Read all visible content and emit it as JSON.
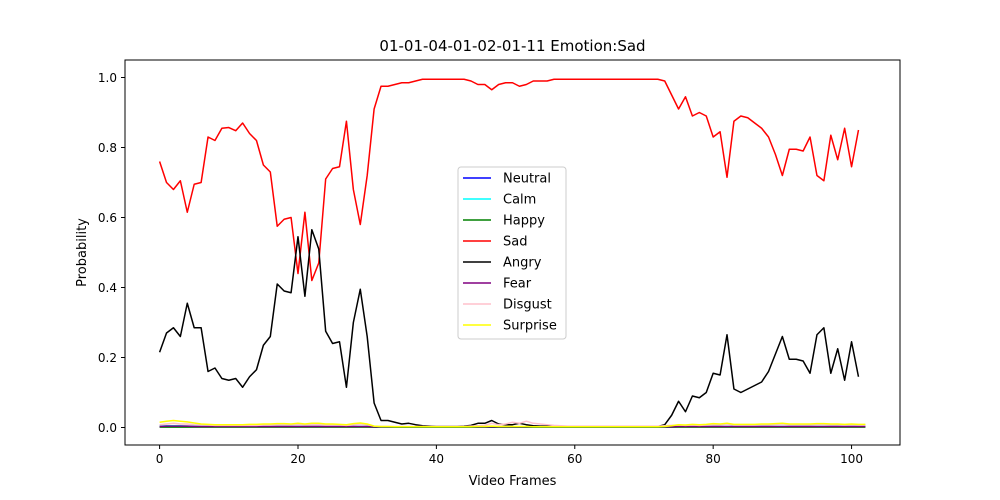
{
  "chart_data": {
    "type": "line",
    "title": "01-01-04-01-02-01-11 Emotion:Sad",
    "xlabel": "Video Frames",
    "ylabel": "Probability",
    "xlim": [
      -5,
      107
    ],
    "ylim": [
      -0.05,
      1.05
    ],
    "xticks": [
      0,
      20,
      40,
      60,
      80,
      100
    ],
    "yticks": [
      0.0,
      0.2,
      0.4,
      0.6,
      0.8,
      1.0
    ],
    "ytick_labels": [
      "0.0",
      "0.2",
      "0.4",
      "0.6",
      "0.8",
      "1.0"
    ],
    "grid": false,
    "legend": "center",
    "x_start": 0,
    "series": [
      {
        "name": "Neutral",
        "color": "#0000ff",
        "values": [
          0.002,
          0.003,
          0.003,
          0.003,
          0.003,
          0.002,
          0.002,
          0.002,
          0.002,
          0.002,
          0.002,
          0.002,
          0.002,
          0.002,
          0.002,
          0.002,
          0.002,
          0.002,
          0.002,
          0.002,
          0.002,
          0.002,
          0.002,
          0.002,
          0.002,
          0.002,
          0.002,
          0.002,
          0.002,
          0.002,
          0.002,
          0.001,
          0.001,
          0.001,
          0.001,
          0.001,
          0.001,
          0.001,
          0.001,
          0.001,
          0.001,
          0.001,
          0.001,
          0.001,
          0.001,
          0.001,
          0.001,
          0.001,
          0.001,
          0.001,
          0.001,
          0.001,
          0.001,
          0.001,
          0.001,
          0.001,
          0.001,
          0.001,
          0.001,
          0.001,
          0.001,
          0.001,
          0.001,
          0.001,
          0.001,
          0.001,
          0.001,
          0.001,
          0.001,
          0.001,
          0.001,
          0.001,
          0.001,
          0.001,
          0.001,
          0.002,
          0.002,
          0.002,
          0.002,
          0.002,
          0.002,
          0.002,
          0.002,
          0.002,
          0.002,
          0.002,
          0.002,
          0.002,
          0.002,
          0.002,
          0.002,
          0.002,
          0.002,
          0.002,
          0.002,
          0.002,
          0.002,
          0.002,
          0.002,
          0.002,
          0.002,
          0.002,
          0.002
        ]
      },
      {
        "name": "Calm",
        "color": "#00ffff",
        "values": [
          0.004,
          0.005,
          0.005,
          0.005,
          0.004,
          0.004,
          0.004,
          0.003,
          0.003,
          0.003,
          0.003,
          0.003,
          0.003,
          0.003,
          0.003,
          0.003,
          0.003,
          0.003,
          0.003,
          0.003,
          0.003,
          0.003,
          0.003,
          0.003,
          0.003,
          0.003,
          0.003,
          0.003,
          0.003,
          0.003,
          0.003,
          0.002,
          0.002,
          0.002,
          0.002,
          0.002,
          0.002,
          0.002,
          0.002,
          0.002,
          0.002,
          0.002,
          0.002,
          0.002,
          0.002,
          0.002,
          0.002,
          0.002,
          0.002,
          0.002,
          0.002,
          0.002,
          0.002,
          0.002,
          0.002,
          0.002,
          0.002,
          0.002,
          0.002,
          0.002,
          0.002,
          0.002,
          0.002,
          0.002,
          0.002,
          0.002,
          0.002,
          0.002,
          0.002,
          0.002,
          0.002,
          0.002,
          0.002,
          0.002,
          0.002,
          0.003,
          0.003,
          0.003,
          0.003,
          0.003,
          0.003,
          0.003,
          0.003,
          0.003,
          0.003,
          0.003,
          0.003,
          0.003,
          0.003,
          0.003,
          0.003,
          0.003,
          0.003,
          0.003,
          0.003,
          0.003,
          0.003,
          0.003,
          0.003,
          0.003,
          0.003,
          0.003,
          0.003
        ]
      },
      {
        "name": "Happy",
        "color": "#008000",
        "values": [
          0.001,
          0.001,
          0.001,
          0.001,
          0.001,
          0.001,
          0.001,
          0.001,
          0.001,
          0.001,
          0.001,
          0.001,
          0.001,
          0.001,
          0.001,
          0.001,
          0.001,
          0.001,
          0.001,
          0.001,
          0.001,
          0.001,
          0.001,
          0.001,
          0.001,
          0.001,
          0.001,
          0.001,
          0.001,
          0.001,
          0.001,
          0.001,
          0.001,
          0.001,
          0.001,
          0.001,
          0.001,
          0.001,
          0.001,
          0.001,
          0.001,
          0.001,
          0.001,
          0.001,
          0.001,
          0.001,
          0.001,
          0.001,
          0.001,
          0.001,
          0.001,
          0.001,
          0.001,
          0.001,
          0.001,
          0.001,
          0.001,
          0.001,
          0.001,
          0.001,
          0.001,
          0.001,
          0.001,
          0.001,
          0.001,
          0.001,
          0.001,
          0.001,
          0.001,
          0.001,
          0.001,
          0.001,
          0.001,
          0.001,
          0.001,
          0.001,
          0.001,
          0.001,
          0.001,
          0.001,
          0.001,
          0.001,
          0.001,
          0.001,
          0.001,
          0.001,
          0.001,
          0.001,
          0.001,
          0.001,
          0.001,
          0.001,
          0.001,
          0.001,
          0.001,
          0.001,
          0.001,
          0.001,
          0.001,
          0.001,
          0.001,
          0.001,
          0.001
        ]
      },
      {
        "name": "Sad",
        "color": "#ff0000",
        "values": [
          0.76,
          0.7,
          0.68,
          0.705,
          0.615,
          0.695,
          0.7,
          0.83,
          0.82,
          0.855,
          0.857,
          0.848,
          0.87,
          0.84,
          0.82,
          0.75,
          0.73,
          0.575,
          0.595,
          0.6,
          0.44,
          0.615,
          0.42,
          0.47,
          0.71,
          0.74,
          0.745,
          0.875,
          0.68,
          0.58,
          0.72,
          0.91,
          0.975,
          0.975,
          0.98,
          0.985,
          0.985,
          0.99,
          0.995,
          0.995,
          0.995,
          0.995,
          0.995,
          0.995,
          0.995,
          0.99,
          0.98,
          0.98,
          0.965,
          0.98,
          0.985,
          0.985,
          0.975,
          0.98,
          0.99,
          0.99,
          0.99,
          0.995,
          0.995,
          0.995,
          0.995,
          0.995,
          0.995,
          0.995,
          0.995,
          0.995,
          0.995,
          0.995,
          0.995,
          0.995,
          0.995,
          0.995,
          0.995,
          0.99,
          0.95,
          0.91,
          0.945,
          0.89,
          0.9,
          0.89,
          0.83,
          0.845,
          0.715,
          0.875,
          0.89,
          0.885,
          0.87,
          0.855,
          0.83,
          0.78,
          0.72,
          0.795,
          0.795,
          0.79,
          0.83,
          0.72,
          0.705,
          0.835,
          0.765,
          0.855,
          0.745,
          0.85
        ]
      },
      {
        "name": "Angry",
        "color": "#000000",
        "values": [
          0.215,
          0.27,
          0.285,
          0.26,
          0.355,
          0.285,
          0.285,
          0.16,
          0.17,
          0.14,
          0.135,
          0.14,
          0.115,
          0.145,
          0.165,
          0.235,
          0.26,
          0.41,
          0.39,
          0.385,
          0.545,
          0.375,
          0.565,
          0.51,
          0.275,
          0.24,
          0.245,
          0.115,
          0.3,
          0.395,
          0.26,
          0.07,
          0.02,
          0.02,
          0.015,
          0.01,
          0.012,
          0.008,
          0.005,
          0.004,
          0.003,
          0.003,
          0.003,
          0.003,
          0.004,
          0.006,
          0.012,
          0.012,
          0.02,
          0.01,
          0.008,
          0.008,
          0.012,
          0.008,
          0.005,
          0.004,
          0.004,
          0.003,
          0.003,
          0.003,
          0.003,
          0.003,
          0.003,
          0.003,
          0.003,
          0.003,
          0.003,
          0.003,
          0.003,
          0.003,
          0.003,
          0.003,
          0.003,
          0.008,
          0.035,
          0.075,
          0.045,
          0.09,
          0.085,
          0.1,
          0.155,
          0.15,
          0.265,
          0.11,
          0.1,
          0.11,
          0.12,
          0.13,
          0.16,
          0.21,
          0.26,
          0.195,
          0.195,
          0.19,
          0.155,
          0.265,
          0.285,
          0.155,
          0.225,
          0.135,
          0.245,
          0.145
        ]
      },
      {
        "name": "Fear",
        "color": "#800080",
        "values": [
          0.003,
          0.004,
          0.004,
          0.004,
          0.004,
          0.003,
          0.003,
          0.003,
          0.003,
          0.003,
          0.003,
          0.003,
          0.003,
          0.003,
          0.003,
          0.003,
          0.003,
          0.003,
          0.003,
          0.003,
          0.003,
          0.003,
          0.003,
          0.003,
          0.003,
          0.003,
          0.003,
          0.003,
          0.003,
          0.003,
          0.003,
          0.002,
          0.002,
          0.002,
          0.002,
          0.002,
          0.002,
          0.002,
          0.002,
          0.002,
          0.002,
          0.002,
          0.002,
          0.002,
          0.002,
          0.002,
          0.002,
          0.002,
          0.002,
          0.002,
          0.002,
          0.002,
          0.002,
          0.002,
          0.002,
          0.002,
          0.002,
          0.002,
          0.002,
          0.002,
          0.002,
          0.002,
          0.002,
          0.002,
          0.002,
          0.002,
          0.002,
          0.002,
          0.002,
          0.002,
          0.002,
          0.002,
          0.002,
          0.002,
          0.002,
          0.003,
          0.003,
          0.003,
          0.003,
          0.003,
          0.003,
          0.003,
          0.003,
          0.003,
          0.003,
          0.003,
          0.003,
          0.003,
          0.003,
          0.003,
          0.003,
          0.003,
          0.003,
          0.003,
          0.003,
          0.003,
          0.003,
          0.003,
          0.003,
          0.003,
          0.003,
          0.003,
          0.003
        ]
      },
      {
        "name": "Disgust",
        "color": "#ffc0cb",
        "values": [
          0.008,
          0.01,
          0.012,
          0.01,
          0.01,
          0.008,
          0.007,
          0.007,
          0.006,
          0.006,
          0.006,
          0.006,
          0.006,
          0.006,
          0.006,
          0.007,
          0.007,
          0.008,
          0.008,
          0.008,
          0.009,
          0.008,
          0.008,
          0.008,
          0.007,
          0.007,
          0.007,
          0.006,
          0.008,
          0.01,
          0.008,
          0.004,
          0.003,
          0.003,
          0.003,
          0.003,
          0.003,
          0.003,
          0.003,
          0.003,
          0.003,
          0.003,
          0.003,
          0.003,
          0.003,
          0.004,
          0.005,
          0.006,
          0.012,
          0.008,
          0.01,
          0.015,
          0.012,
          0.018,
          0.012,
          0.01,
          0.008,
          0.006,
          0.005,
          0.004,
          0.004,
          0.004,
          0.004,
          0.004,
          0.004,
          0.004,
          0.004,
          0.004,
          0.004,
          0.004,
          0.004,
          0.004,
          0.004,
          0.005,
          0.006,
          0.007,
          0.006,
          0.007,
          0.006,
          0.007,
          0.008,
          0.008,
          0.01,
          0.007,
          0.007,
          0.007,
          0.007,
          0.008,
          0.008,
          0.009,
          0.01,
          0.008,
          0.008,
          0.008,
          0.008,
          0.009,
          0.009,
          0.008,
          0.008,
          0.007,
          0.008,
          0.007,
          0.007
        ]
      },
      {
        "name": "Surprise",
        "color": "#ffff00",
        "values": [
          0.015,
          0.018,
          0.02,
          0.018,
          0.016,
          0.013,
          0.01,
          0.009,
          0.008,
          0.008,
          0.008,
          0.008,
          0.008,
          0.009,
          0.009,
          0.01,
          0.01,
          0.011,
          0.011,
          0.01,
          0.012,
          0.01,
          0.012,
          0.012,
          0.01,
          0.01,
          0.009,
          0.008,
          0.011,
          0.013,
          0.01,
          0.004,
          0.003,
          0.003,
          0.002,
          0.002,
          0.002,
          0.002,
          0.002,
          0.002,
          0.002,
          0.002,
          0.002,
          0.002,
          0.002,
          0.002,
          0.003,
          0.003,
          0.004,
          0.003,
          0.003,
          0.003,
          0.003,
          0.003,
          0.002,
          0.002,
          0.002,
          0.002,
          0.002,
          0.002,
          0.002,
          0.002,
          0.002,
          0.002,
          0.002,
          0.002,
          0.002,
          0.002,
          0.002,
          0.002,
          0.002,
          0.002,
          0.002,
          0.003,
          0.005,
          0.008,
          0.007,
          0.009,
          0.008,
          0.009,
          0.011,
          0.01,
          0.012,
          0.009,
          0.009,
          0.009,
          0.009,
          0.01,
          0.01,
          0.011,
          0.012,
          0.01,
          0.01,
          0.01,
          0.01,
          0.011,
          0.011,
          0.01,
          0.01,
          0.009,
          0.01,
          0.009,
          0.009
        ]
      }
    ]
  }
}
